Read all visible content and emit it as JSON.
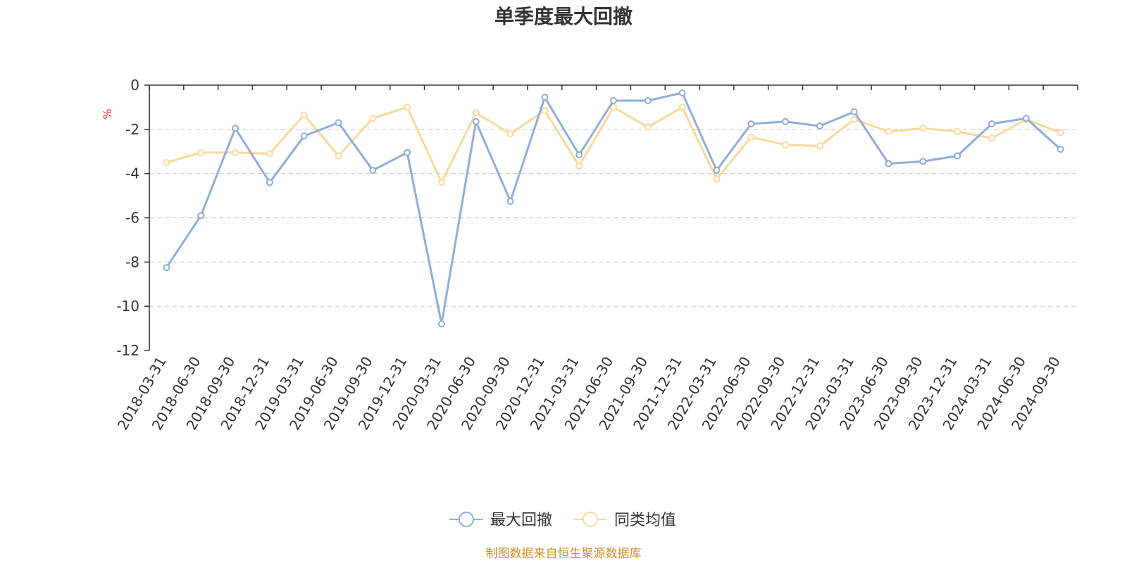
{
  "chart_data": {
    "type": "line",
    "title": "单季度最大回撤",
    "ylabel": "%",
    "ylim": [
      -12,
      0
    ],
    "yticks": [
      0,
      -2,
      -4,
      -6,
      -8,
      -10,
      -12
    ],
    "grid": true,
    "legend_position": "bottom",
    "categories": [
      "2018-03-31",
      "2018-06-30",
      "2018-09-30",
      "2018-12-31",
      "2019-03-31",
      "2019-06-30",
      "2019-09-30",
      "2019-12-31",
      "2020-03-31",
      "2020-06-30",
      "2020-09-30",
      "2020-12-31",
      "2021-03-31",
      "2021-06-30",
      "2021-09-30",
      "2021-12-31",
      "2022-03-31",
      "2022-06-30",
      "2022-09-30",
      "2022-12-31",
      "2023-03-31",
      "2023-06-30",
      "2023-09-30",
      "2023-12-31",
      "2024-03-31",
      "2024-06-30",
      "2024-09-30"
    ],
    "series": [
      {
        "name": "最大回撤",
        "color": "#8eaed9",
        "values": [
          -8.25,
          -5.9,
          -1.95,
          -4.4,
          -2.3,
          -1.7,
          -3.85,
          -3.05,
          -10.8,
          -1.65,
          -5.25,
          -0.55,
          -3.15,
          -0.7,
          -0.7,
          -0.35,
          -3.85,
          -1.75,
          -1.65,
          -1.85,
          -1.2,
          -3.55,
          -3.45,
          -3.2,
          -1.75,
          -1.5,
          -2.9
        ]
      },
      {
        "name": "同类均值",
        "color": "#fbd89b",
        "values": [
          -3.5,
          -3.05,
          -3.05,
          -3.1,
          -1.35,
          -3.2,
          -1.5,
          -1.0,
          -4.4,
          -1.25,
          -2.2,
          -1.15,
          -3.65,
          -1.0,
          -1.9,
          -1.0,
          -4.25,
          -2.35,
          -2.7,
          -2.75,
          -1.55,
          -2.1,
          -1.95,
          -2.1,
          -2.4,
          -1.55,
          -2.15
        ]
      }
    ]
  },
  "footer": {
    "source_text": "制图数据来自恒生聚源数据库",
    "source_color": "#c8922b"
  },
  "colors": {
    "axis": "#333333",
    "grid": "#cccccc",
    "unit": "#e03030"
  }
}
